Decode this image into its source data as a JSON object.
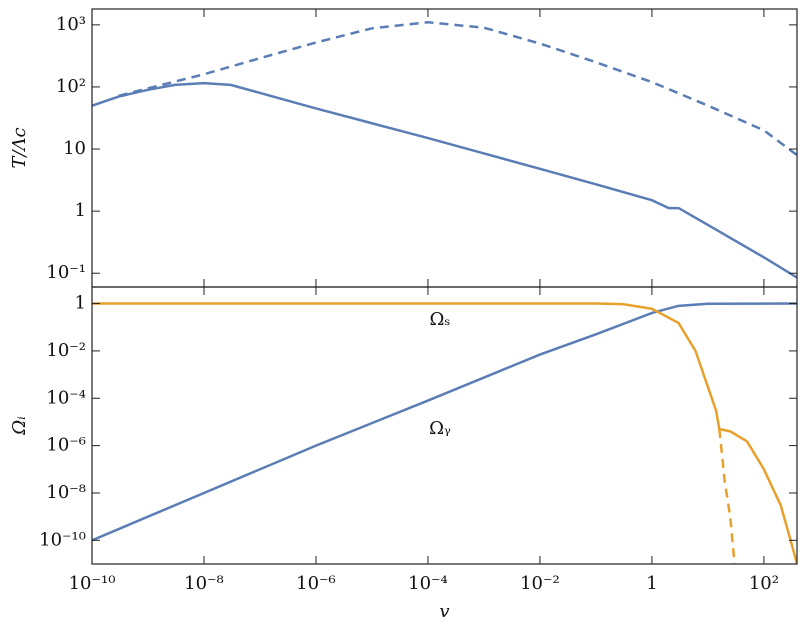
{
  "chart_data": [
    {
      "type": "line",
      "xscale": "log",
      "yscale": "log",
      "ylabel": "T/Λc",
      "xlim": [
        1e-10,
        390
      ],
      "ylim": [
        0.06,
        1800
      ],
      "yticks": [
        {
          "value": 0.1,
          "label": "10⁻¹"
        },
        1,
        10,
        {
          "value": 100,
          "label": "10²"
        },
        {
          "value": 1000,
          "label": "10³"
        }
      ],
      "series": [
        {
          "color": "#5b7db5",
          "dash": false,
          "x": [
            1e-10,
            3e-10,
            1e-09,
            3e-09,
            1e-08,
            3e-08,
            1e-07,
            1e-06,
            1e-05,
            0.0001,
            0.001,
            0.01,
            0.1,
            1,
            2,
            3,
            10,
            100,
            390
          ],
          "values": [
            50,
            70,
            90,
            108,
            115,
            108,
            80,
            45,
            26,
            15,
            8.5,
            4.8,
            2.7,
            1.5,
            1.12,
            1.12,
            0.6,
            0.18,
            0.085
          ]
        },
        {
          "color": "#5b7db5",
          "dash": true,
          "x": [
            3e-10,
            1e-09,
            1e-08,
            1e-07,
            1e-06,
            1e-05,
            0.0001,
            0.001,
            0.01,
            0.1,
            1,
            10,
            100,
            390
          ],
          "values": [
            72,
            95,
            160,
            290,
            520,
            880,
            1100,
            900,
            500,
            250,
            120,
            50,
            20,
            8
          ]
        }
      ]
    },
    {
      "type": "line",
      "xscale": "log",
      "yscale": "log",
      "ylabel": "Ωᵢ",
      "xlabel": "v",
      "xlim": [
        1e-10,
        390
      ],
      "ylim": [
        1e-11,
        5
      ],
      "xticks": [
        {
          "value": 1e-10,
          "label": "10⁻¹⁰"
        },
        {
          "value": 1e-08,
          "label": "10⁻⁸"
        },
        {
          "value": 1e-06,
          "label": "10⁻⁶"
        },
        {
          "value": 0.0001,
          "label": "10⁻⁴"
        },
        {
          "value": 0.01,
          "label": "10⁻²"
        },
        1,
        {
          "value": 100,
          "label": "10²"
        }
      ],
      "yticks": [
        {
          "value": 1e-10,
          "label": "10⁻¹⁰"
        },
        {
          "value": 1e-08,
          "label": "10⁻⁸"
        },
        {
          "value": 1e-06,
          "label": "10⁻⁶"
        },
        {
          "value": 0.0001,
          "label": "10⁻⁴"
        },
        {
          "value": 0.01,
          "label": "10⁻²"
        },
        1
      ],
      "series": [
        {
          "color": "#5b7db5",
          "dash": false,
          "x": [
            1e-10,
            1e-08,
            1e-06,
            0.0001,
            0.01,
            0.1,
            1,
            3,
            10,
            390
          ],
          "values": [
            1e-10,
            1e-08,
            1e-06,
            8e-05,
            0.007,
            0.05,
            0.4,
            0.8,
            0.98,
            1
          ]
        },
        {
          "color": "#e8a02c",
          "dash": false,
          "x": [
            1e-10,
            0.1,
            0.3,
            1,
            3,
            6,
            10,
            14,
            16,
            16,
            25,
            50,
            100,
            200,
            300,
            390
          ],
          "values": [
            1,
            1,
            0.95,
            0.6,
            0.15,
            0.01,
            0.0003,
            3e-05,
            5e-06,
            5e-06,
            4e-06,
            1.5e-06,
            1e-07,
            3e-09,
            1e-10,
            1e-11
          ]
        },
        {
          "color": "#e8a02c",
          "dash": true,
          "x": [
            16,
            20,
            25,
            30
          ],
          "values": [
            5e-06,
            3e-08,
            1e-09,
            1e-11
          ]
        }
      ],
      "annotations": [
        {
          "text": "Ωₛ",
          "x": 0.0001,
          "y": 0.2
        },
        {
          "text": "Ωᵧ",
          "x": 0.0001,
          "y": 5e-06
        }
      ]
    }
  ]
}
